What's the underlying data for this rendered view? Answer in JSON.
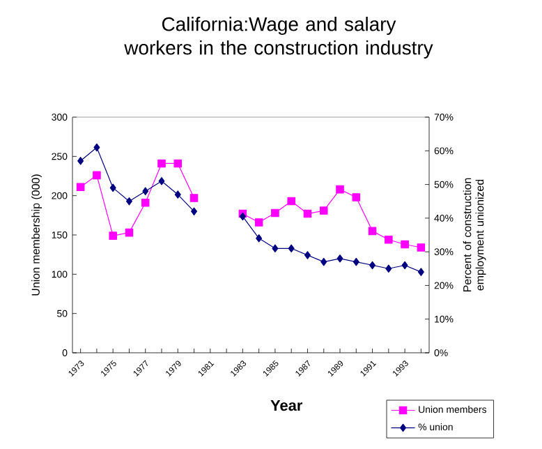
{
  "chart_data": {
    "type": "line",
    "title": "California:Wage and salary workers in the construction industry",
    "xlabel": "Year",
    "ylabel": "Union membership (000)",
    "y2label": "Percent of construction employment unionized",
    "categories": [
      "1973",
      null,
      "1975",
      null,
      "1977",
      null,
      "1979",
      null,
      "1981",
      null,
      "1983",
      null,
      "1985",
      null,
      "1987",
      null,
      "1989",
      null,
      "1991",
      null,
      "1993",
      null
    ],
    "series": [
      {
        "name": "Union members",
        "color": "#ff00ff",
        "marker": "square",
        "values": [
          211,
          226,
          149,
          153,
          191,
          241,
          241,
          197,
          null,
          null,
          177,
          166,
          178,
          193,
          177,
          181,
          208,
          198,
          155,
          144,
          138,
          134
        ]
      },
      {
        "name": "% union",
        "color": "#000080",
        "marker": "diamond",
        "axis": "y2",
        "values": [
          57,
          61,
          49,
          45,
          48,
          51,
          47,
          42,
          null,
          null,
          40.5,
          34,
          31,
          31,
          29,
          27,
          28,
          27,
          26,
          25,
          26,
          24
        ]
      }
    ],
    "ylim": [
      0,
      300
    ],
    "yticks": [
      0,
      50,
      100,
      150,
      200,
      250,
      300
    ],
    "y2lim": [
      0,
      70
    ],
    "y2ticks": [
      {
        "value": 0,
        "label": "0%"
      },
      {
        "value": 10,
        "label": "10%"
      },
      {
        "value": 20,
        "label": "20%"
      },
      {
        "value": 30,
        "label": "30%"
      },
      {
        "value": 40,
        "label": "40%"
      },
      {
        "value": 50,
        "label": "50%"
      },
      {
        "value": 60,
        "label": "60%"
      },
      {
        "value": 70,
        "label": "70%"
      }
    ],
    "legend": "bottom right",
    "line_style": "solid"
  }
}
